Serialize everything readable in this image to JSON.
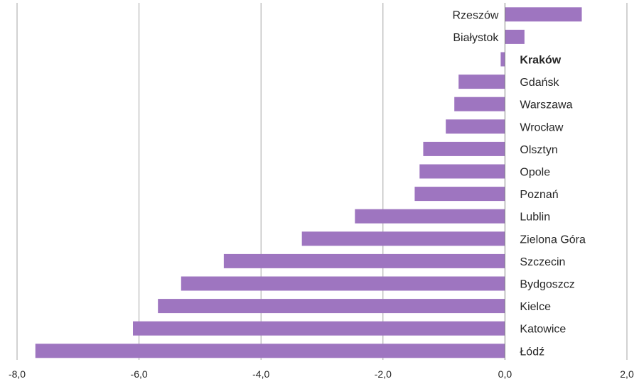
{
  "chart_data": {
    "type": "bar",
    "orientation": "horizontal",
    "categories": [
      "Rzeszów",
      "Białystok",
      "Kraków",
      "Gdańsk",
      "Warszawa",
      "Wrocław",
      "Olsztyn",
      "Opole",
      "Poznań",
      "Lublin",
      "Zielona Góra",
      "Szczecin",
      "Bydgoszcz",
      "Kielce",
      "Katowice",
      "Łódź"
    ],
    "values": [
      1.26,
      0.32,
      -0.07,
      -0.76,
      -0.83,
      -0.97,
      -1.34,
      -1.4,
      -1.48,
      -2.46,
      -3.33,
      -4.61,
      -5.31,
      -5.69,
      -6.1,
      -7.7
    ],
    "highlight_category": "Kraków",
    "xlim": [
      -8,
      2
    ],
    "xticks": [
      -8,
      -6,
      -4,
      -2,
      0,
      2
    ],
    "xtick_labels": [
      "-8,0",
      "-6,0",
      "-4,0",
      "-2,0",
      "0,0",
      "2,0"
    ],
    "grid": true,
    "bar_color": "#9e75c0",
    "title": "",
    "xlabel": "",
    "ylabel": ""
  }
}
